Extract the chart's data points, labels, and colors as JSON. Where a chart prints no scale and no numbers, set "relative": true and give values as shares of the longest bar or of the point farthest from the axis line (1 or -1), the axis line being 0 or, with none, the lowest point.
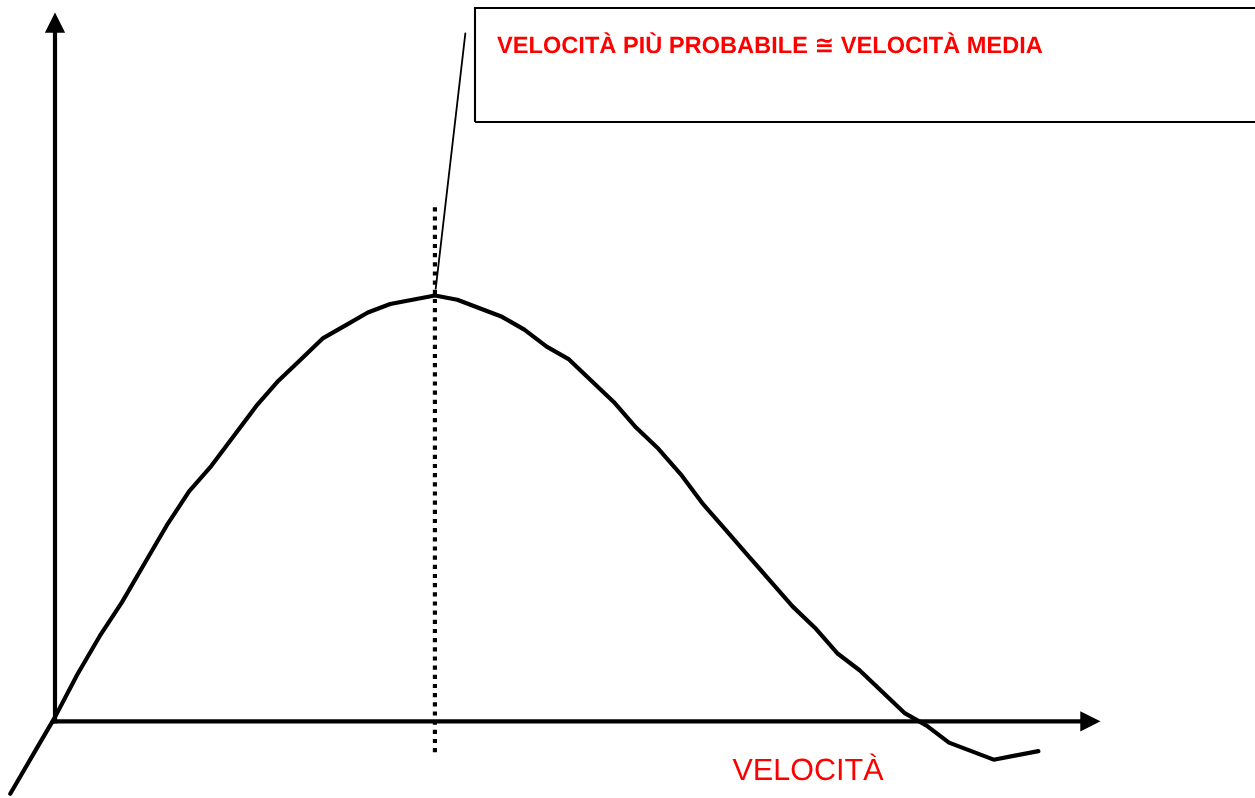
{
  "chart_data": {
    "type": "line",
    "relative": true,
    "categories": [
      null,
      null,
      null,
      null,
      null,
      null,
      null,
      null,
      null,
      null,
      null,
      null,
      null,
      null,
      null,
      null,
      null,
      null,
      null,
      null,
      null,
      null,
      null,
      null,
      null,
      null,
      null,
      null,
      null,
      null,
      null,
      null,
      null,
      null,
      null,
      null,
      null,
      null,
      null,
      null,
      null,
      null,
      null,
      null,
      null,
      null,
      null
    ],
    "series": [
      {
        "color": "#000000",
        "line_style": "solid",
        "values": [
          -0.17,
          -0.08,
          0.01,
          0.11,
          0.2,
          0.28,
          0.37,
          0.46,
          0.54,
          0.6,
          0.67,
          0.74,
          0.8,
          0.85,
          0.9,
          0.93,
          0.96,
          0.98,
          0.99,
          1.0,
          0.99,
          0.97,
          0.95,
          0.92,
          0.88,
          0.85,
          0.8,
          0.75,
          0.69,
          0.64,
          0.58,
          0.51,
          0.45,
          0.39,
          0.33,
          0.27,
          0.22,
          0.16,
          0.12,
          0.07,
          0.02,
          -0.01,
          -0.05,
          -0.07,
          -0.09,
          -0.08,
          -0.07
        ]
      }
    ],
    "xlabel": "VELOCITÀ",
    "annotations": [
      "VELOCITÀ PIÙ PROBABILE ≅ VELOCITÀ MEDIA"
    ]
  }
}
